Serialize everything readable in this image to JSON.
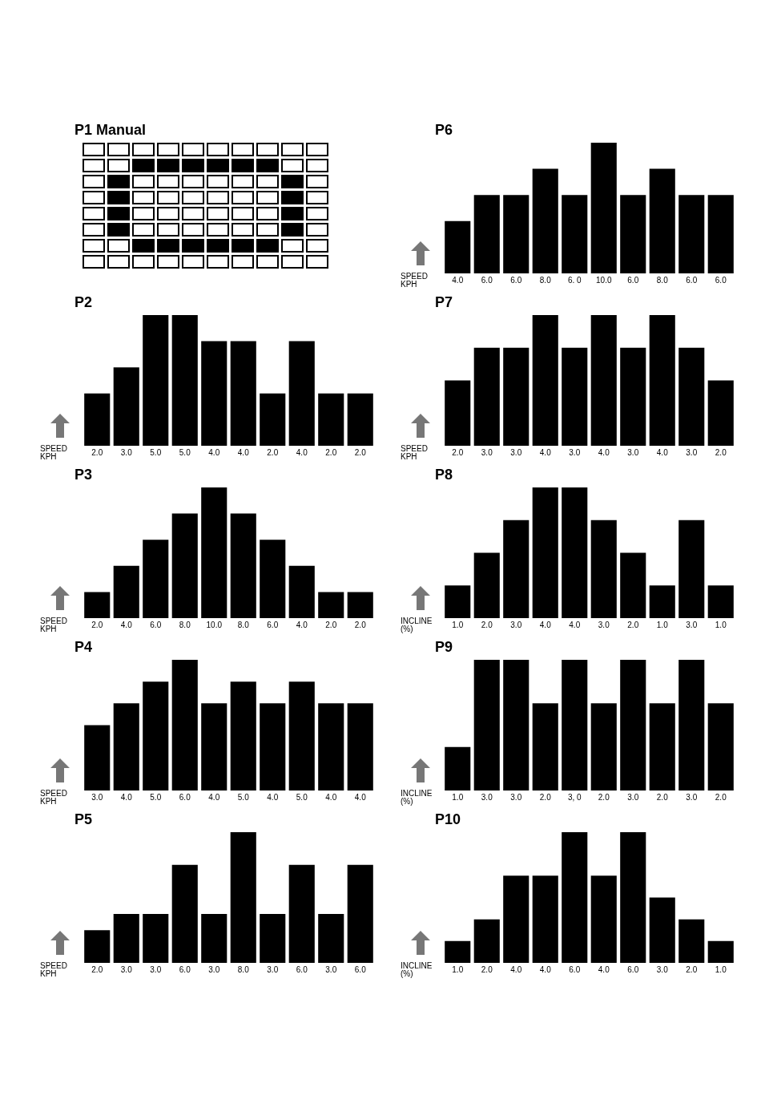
{
  "chart_data": [
    {
      "type": "other",
      "title": "P1 Manual"
    },
    {
      "type": "bar",
      "title": "P6",
      "xlabel": "SPEED KPH",
      "categories": [
        null,
        null,
        null,
        null,
        null,
        null,
        null,
        null,
        null,
        null
      ],
      "color": "#000000",
      "values": [
        4,
        6,
        6,
        8,
        6,
        10,
        6,
        8,
        6,
        6
      ],
      "value_labels": [
        "4.0",
        "6.0",
        "6.0",
        "8.0",
        "6. 0",
        "10.0",
        "6.0",
        "8.0",
        "6.0",
        "6.0"
      ]
    },
    {
      "type": "bar",
      "title": "P2",
      "xlabel": "SPEED KPH",
      "categories": [
        null,
        null,
        null,
        null,
        null,
        null,
        null,
        null,
        null,
        null
      ],
      "color": "#000000",
      "values": [
        2,
        3,
        5,
        5,
        4,
        4,
        2,
        4,
        2,
        2
      ],
      "value_labels": [
        "2.0",
        "3.0",
        "5.0",
        "5.0",
        "4.0",
        "4.0",
        "2.0",
        "4.0",
        "2.0",
        "2.0"
      ]
    },
    {
      "type": "bar",
      "title": "P7",
      "xlabel": "SPEED KPH",
      "categories": [
        null,
        null,
        null,
        null,
        null,
        null,
        null,
        null,
        null,
        null
      ],
      "color": "#000000",
      "values": [
        2,
        3,
        3,
        4,
        3,
        4,
        3,
        4,
        3,
        2
      ],
      "value_labels": [
        "2.0",
        "3.0",
        "3.0",
        "4.0",
        "3.0",
        "4.0",
        "3.0",
        "4.0",
        "3.0",
        "2.0"
      ]
    },
    {
      "type": "bar",
      "title": "P3",
      "xlabel": "SPEED KPH",
      "categories": [
        null,
        null,
        null,
        null,
        null,
        null,
        null,
        null,
        null,
        null
      ],
      "color": "#000000",
      "values": [
        2,
        4,
        6,
        8,
        10,
        8,
        6,
        4,
        2,
        2
      ],
      "value_labels": [
        "2.0",
        "4.0",
        "6.0",
        "8.0",
        "10.0",
        "8.0",
        "6.0",
        "4.0",
        "2.0",
        "2.0"
      ]
    },
    {
      "type": "bar",
      "title": "P8",
      "xlabel": "INCLINE (%)",
      "categories": [
        null,
        null,
        null,
        null,
        null,
        null,
        null,
        null,
        null,
        null
      ],
      "color": "#000000",
      "values": [
        1,
        2,
        3,
        4,
        4,
        3,
        2,
        1,
        3,
        1
      ],
      "value_labels": [
        "1.0",
        "2.0",
        "3.0",
        "4.0",
        "4.0",
        "3.0",
        "2.0",
        "1.0",
        "3.0",
        "1.0"
      ]
    },
    {
      "type": "bar",
      "title": "P4",
      "xlabel": "SPEED KPH",
      "categories": [
        null,
        null,
        null,
        null,
        null,
        null,
        null,
        null,
        null,
        null
      ],
      "color": "#000000",
      "values": [
        3,
        4,
        5,
        6,
        4,
        5,
        4,
        5,
        4,
        4
      ],
      "value_labels": [
        "3.0",
        "4.0",
        "5.0",
        "6.0",
        "4.0",
        "5.0",
        "4.0",
        "5.0",
        "4.0",
        "4.0"
      ]
    },
    {
      "type": "bar",
      "title": "P9",
      "xlabel": "INCLINE (%)",
      "categories": [
        null,
        null,
        null,
        null,
        null,
        null,
        null,
        null,
        null,
        null
      ],
      "color": "#000000",
      "values": [
        1,
        3,
        3,
        2,
        3,
        2,
        3,
        2,
        3,
        2
      ],
      "value_labels": [
        "1.0",
        "3.0",
        "3.0",
        "2.0",
        "3, 0",
        "2.0",
        "3.0",
        "2.0",
        "3.0",
        "2.0"
      ]
    },
    {
      "type": "bar",
      "title": "P5",
      "xlabel": "SPEED KPH",
      "categories": [
        null,
        null,
        null,
        null,
        null,
        null,
        null,
        null,
        null,
        null
      ],
      "color": "#000000",
      "values": [
        2,
        3,
        3,
        6,
        3,
        8,
        3,
        6,
        3,
        6
      ],
      "value_labels": [
        "2.0",
        "3.0",
        "3.0",
        "6.0",
        "3.0",
        "8.0",
        "3.0",
        "6.0",
        "3.0",
        "6.0"
      ]
    },
    {
      "type": "bar",
      "title": "P10",
      "xlabel": "INCLINE (%)",
      "categories": [
        null,
        null,
        null,
        null,
        null,
        null,
        null,
        null,
        null,
        null
      ],
      "color": "#000000",
      "values": [
        1,
        2,
        4,
        4,
        6,
        4,
        6,
        3,
        2,
        1
      ],
      "value_labels": [
        "1.0",
        "2.0",
        "4.0",
        "4.0",
        "6.0",
        "4.0",
        "6.0",
        "3.0",
        "2.0",
        "1.0"
      ]
    }
  ]
}
